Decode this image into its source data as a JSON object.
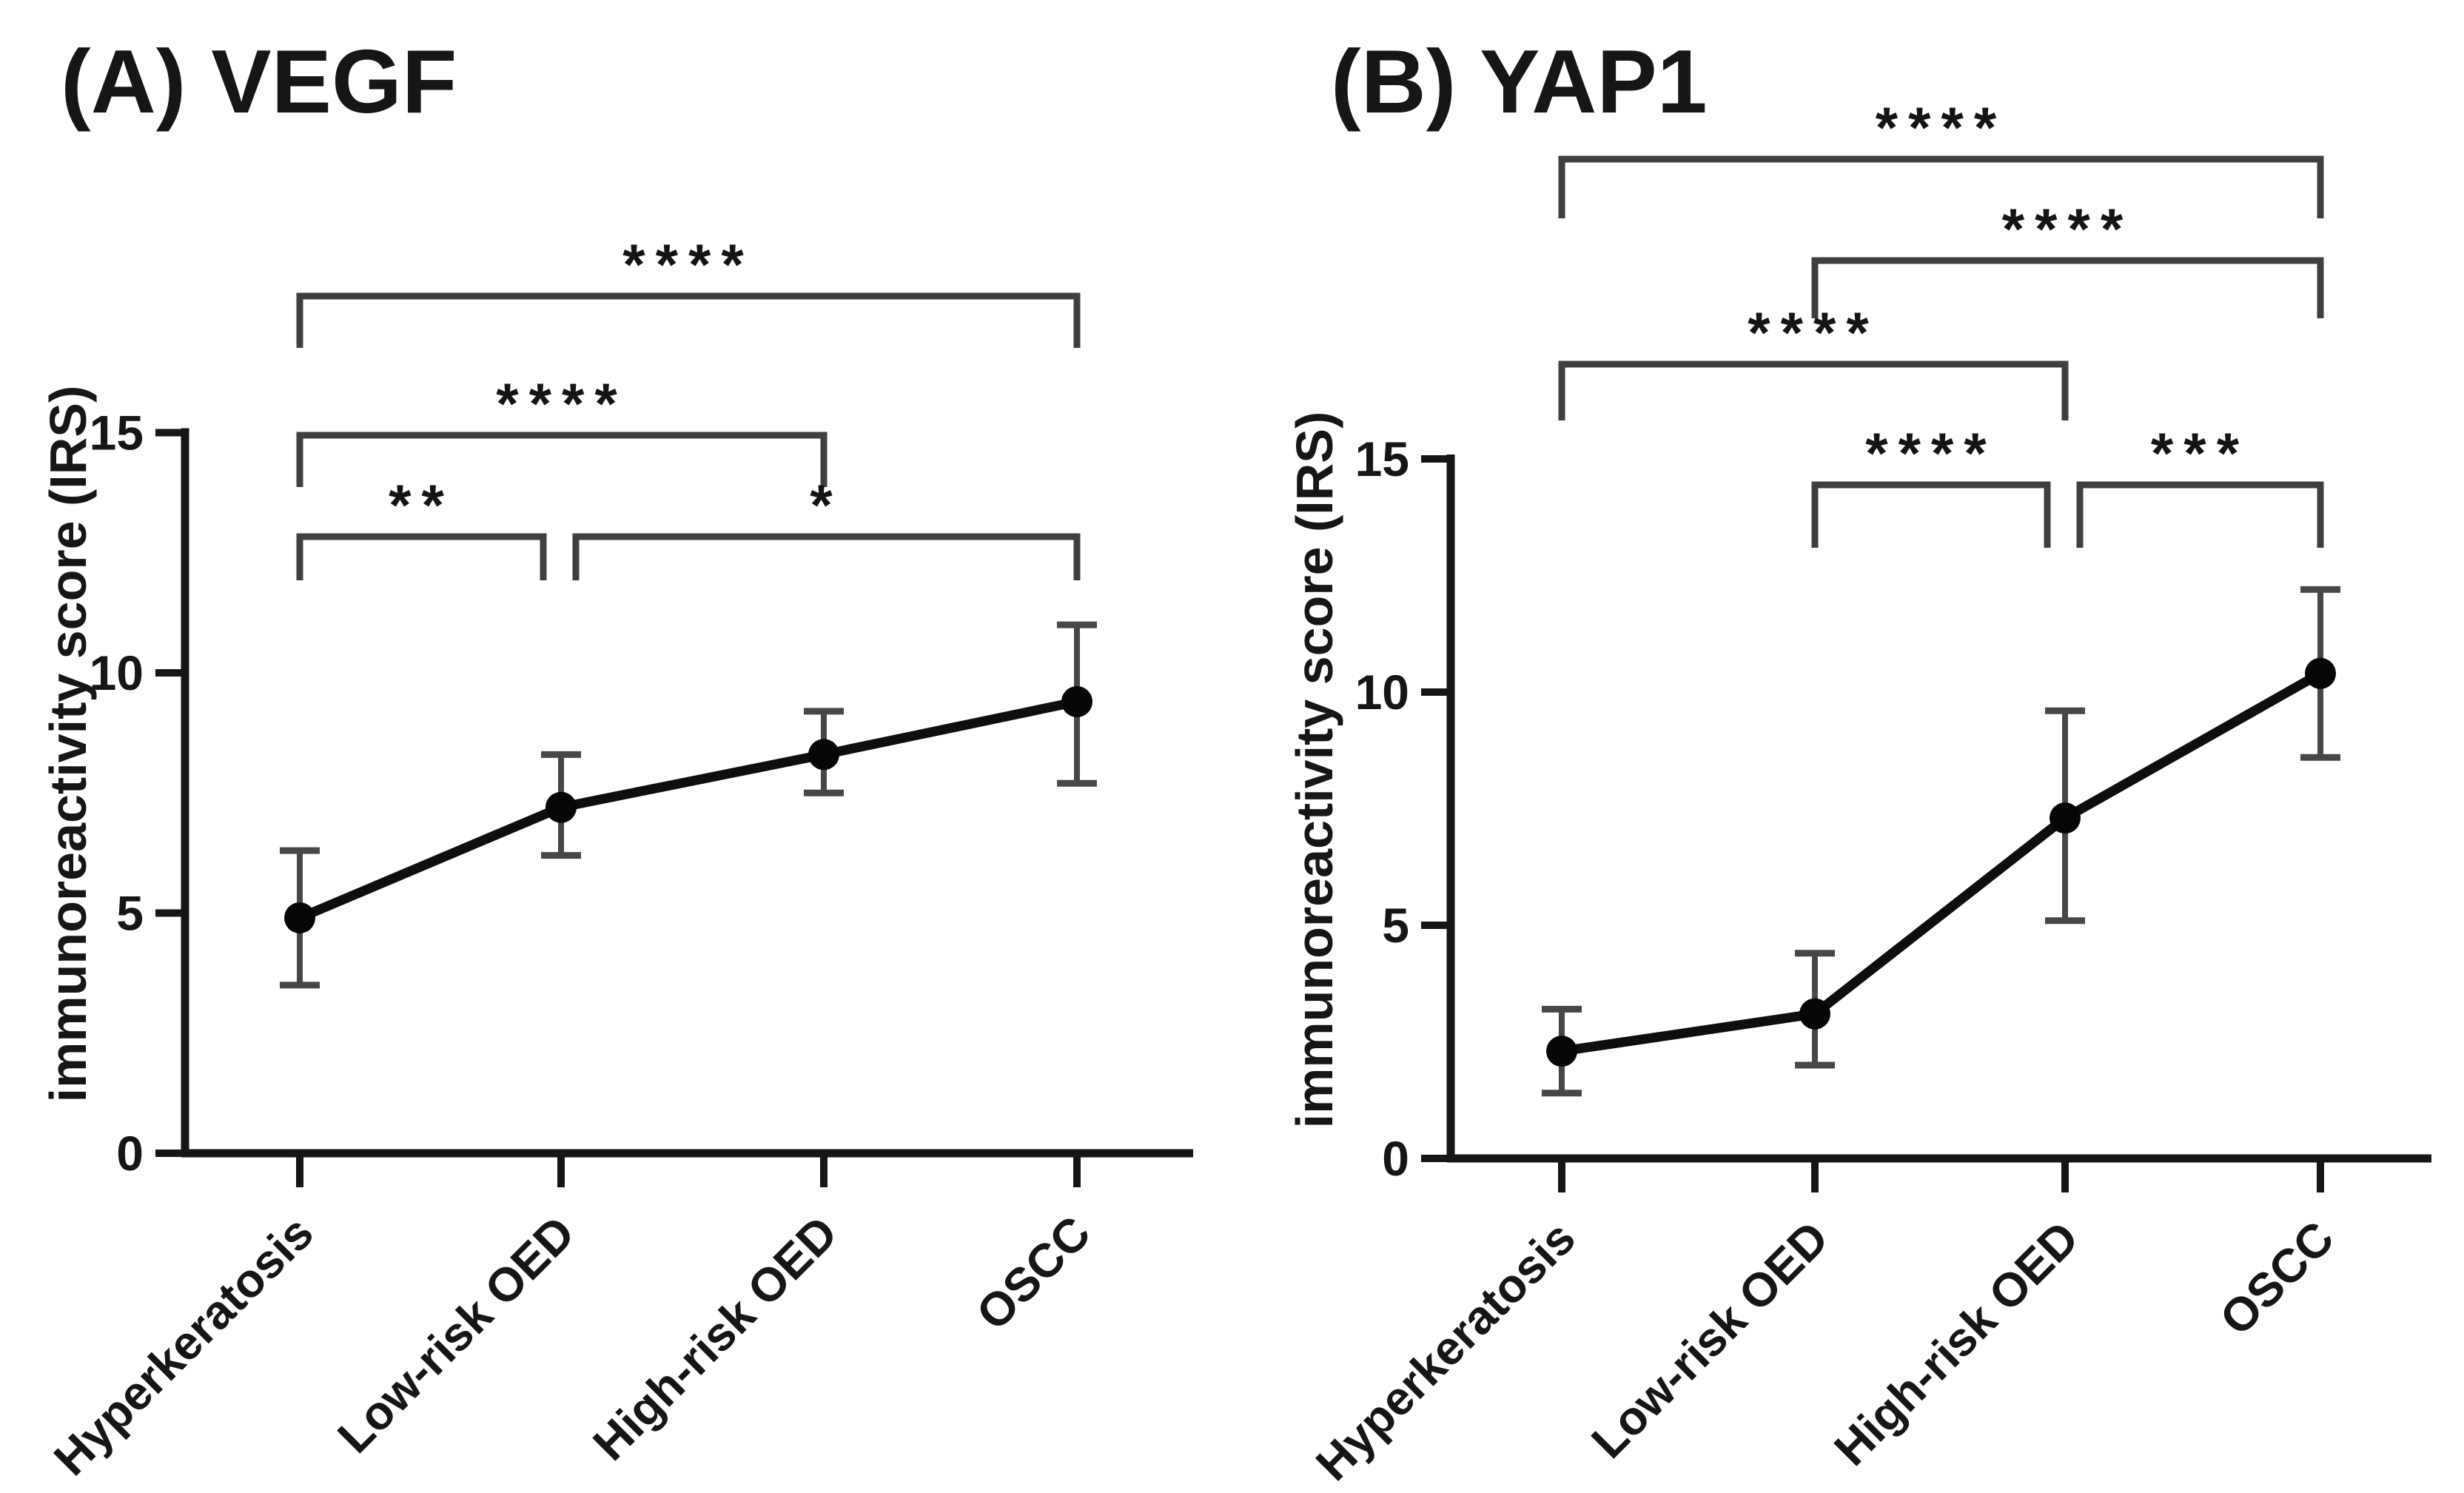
{
  "figure": {
    "background": "#ffffff",
    "colors": {
      "axis": "#161616",
      "text": "#161616",
      "data_line": "#0e0e0e",
      "marker": "#060606",
      "error_bar": "#474747",
      "bracket": "#3f3f3f",
      "stars": "#141414"
    }
  },
  "chart_data": [
    {
      "type": "line",
      "title": "(A) VEGF",
      "ylabel": "immunoreactivity score (IRS)",
      "xlabel": "",
      "ylim": [
        0,
        15
      ],
      "yticks": [
        "0",
        "5",
        "10",
        "15"
      ],
      "grid": false,
      "legend": "none",
      "categories": [
        "Hyperkeratosis",
        "Low-risk OED",
        "High-risk OED",
        "OSCC"
      ],
      "series": [
        {
          "values": [
            4.9,
            7.2,
            8.3,
            9.4
          ],
          "err_lower": [
            3.5,
            6.2,
            7.5,
            7.7
          ],
          "err_upper": [
            6.3,
            8.3,
            9.2,
            11.0
          ]
        }
      ],
      "significance_brackets": [
        {
          "groups": [
            0,
            3
          ],
          "label": "****",
          "row": 0
        },
        {
          "groups": [
            0,
            2
          ],
          "label": "****",
          "row": 1
        },
        {
          "groups": [
            0,
            1
          ],
          "label": "**",
          "row": 2
        },
        {
          "groups": [
            1,
            3
          ],
          "label": "*",
          "row": 2
        }
      ]
    },
    {
      "type": "line",
      "title": "(B) YAP1",
      "ylabel": "immunoreactivity score (IRS)",
      "xlabel": "",
      "ylim": [
        0,
        15
      ],
      "yticks": [
        "0",
        "5",
        "10",
        "15"
      ],
      "grid": false,
      "legend": "none",
      "categories": [
        "Hyperkeratosis",
        "Low-risk OED",
        "High-risk OED",
        "OSCC"
      ],
      "series": [
        {
          "values": [
            2.3,
            3.1,
            7.3,
            10.4
          ],
          "err_lower": [
            1.4,
            2.0,
            5.1,
            8.6
          ],
          "err_upper": [
            3.2,
            4.4,
            9.6,
            12.2
          ]
        }
      ],
      "significance_brackets": [
        {
          "groups": [
            0,
            3
          ],
          "label": "****",
          "row": 0
        },
        {
          "groups": [
            1,
            3
          ],
          "label": "****",
          "row": 1
        },
        {
          "groups": [
            0,
            2
          ],
          "label": "****",
          "row": 2
        },
        {
          "groups": [
            1,
            2
          ],
          "label": "****",
          "row": 3
        },
        {
          "groups": [
            2,
            3
          ],
          "label": "***",
          "row": 3
        }
      ]
    }
  ]
}
